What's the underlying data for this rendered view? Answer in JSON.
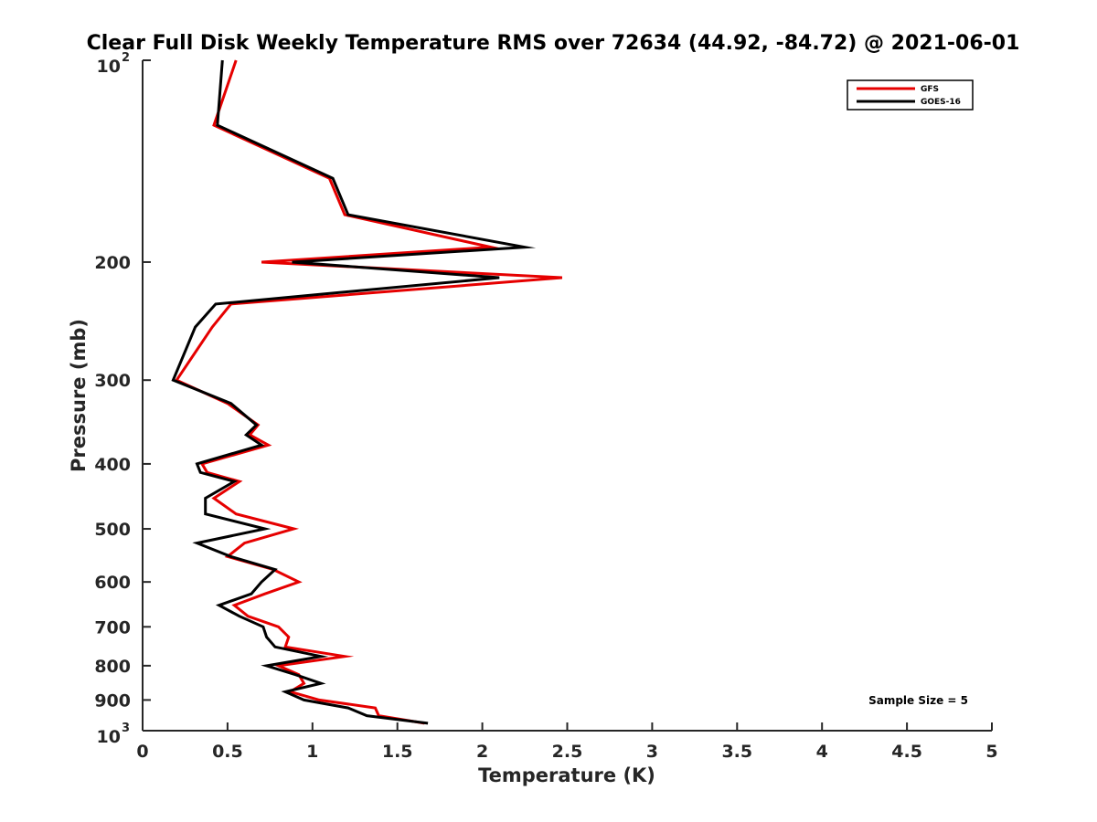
{
  "chart_data": {
    "type": "line",
    "title": "Clear Full Disk Weekly Temperature RMS over 72634 (44.92, -84.72) @ 2021-06-01",
    "xlabel": "Temperature (K)",
    "ylabel": "Pressure (mb)",
    "xlim": [
      0,
      5
    ],
    "ylim": [
      100,
      1000
    ],
    "yscale": "log",
    "y_reversed": true,
    "x_ticks": [
      {
        "value": 0,
        "label": "0"
      },
      {
        "value": 0.5,
        "label": "0.5"
      },
      {
        "value": 1,
        "label": "1"
      },
      {
        "value": 1.5,
        "label": "1.5"
      },
      {
        "value": 2,
        "label": "2"
      },
      {
        "value": 2.5,
        "label": "2.5"
      },
      {
        "value": 3,
        "label": "3"
      },
      {
        "value": 3.5,
        "label": "3.5"
      },
      {
        "value": 4,
        "label": "4"
      },
      {
        "value": 4.5,
        "label": "4.5"
      },
      {
        "value": 5,
        "label": "5"
      }
    ],
    "y_ticks": [
      {
        "value": 100,
        "base": "10",
        "exp": "2"
      },
      {
        "value": 200,
        "label": "200"
      },
      {
        "value": 300,
        "label": "300"
      },
      {
        "value": 400,
        "label": "400"
      },
      {
        "value": 500,
        "label": "500"
      },
      {
        "value": 600,
        "label": "600"
      },
      {
        "value": 700,
        "label": "700"
      },
      {
        "value": 800,
        "label": "800"
      },
      {
        "value": 900,
        "label": "900"
      },
      {
        "value": 1000,
        "base": "10",
        "exp": "3"
      }
    ],
    "legend": {
      "position": "top-right",
      "entries": [
        {
          "name": "GFS",
          "color": "#e60000"
        },
        {
          "name": "GOES-16",
          "color": "#000000"
        }
      ]
    },
    "annotation": "Sample Size = 5",
    "series": [
      {
        "name": "GFS",
        "color": "#e60000",
        "points": [
          [
            0.55,
            100
          ],
          [
            0.42,
            125
          ],
          [
            1.1,
            150
          ],
          [
            1.19,
            170
          ],
          [
            2.05,
            190
          ],
          [
            0.7,
            200
          ],
          [
            2.47,
            211
          ],
          [
            0.52,
            231
          ],
          [
            0.41,
            250
          ],
          [
            0.2,
            300
          ],
          [
            0.5,
            325
          ],
          [
            0.68,
            350
          ],
          [
            0.63,
            362
          ],
          [
            0.74,
            375
          ],
          [
            0.35,
            400
          ],
          [
            0.38,
            412
          ],
          [
            0.57,
            425
          ],
          [
            0.42,
            450
          ],
          [
            0.55,
            475
          ],
          [
            0.89,
            500
          ],
          [
            0.6,
            525
          ],
          [
            0.5,
            550
          ],
          [
            0.77,
            575
          ],
          [
            0.92,
            600
          ],
          [
            0.72,
            625
          ],
          [
            0.54,
            650
          ],
          [
            0.62,
            675
          ],
          [
            0.8,
            700
          ],
          [
            0.86,
            725
          ],
          [
            0.84,
            750
          ],
          [
            1.19,
            775
          ],
          [
            0.8,
            800
          ],
          [
            0.92,
            825
          ],
          [
            0.95,
            850
          ],
          [
            0.87,
            875
          ],
          [
            1.04,
            900
          ],
          [
            1.37,
            925
          ],
          [
            1.39,
            950
          ],
          [
            1.66,
            975
          ]
        ]
      },
      {
        "name": "GOES-16",
        "color": "#000000",
        "points": [
          [
            0.47,
            100
          ],
          [
            0.44,
            125
          ],
          [
            1.12,
            150
          ],
          [
            1.21,
            170
          ],
          [
            2.25,
            190
          ],
          [
            0.88,
            200
          ],
          [
            2.1,
            211
          ],
          [
            0.43,
            231
          ],
          [
            0.31,
            250
          ],
          [
            0.18,
            300
          ],
          [
            0.52,
            325
          ],
          [
            0.67,
            350
          ],
          [
            0.61,
            362
          ],
          [
            0.7,
            375
          ],
          [
            0.32,
            400
          ],
          [
            0.34,
            412
          ],
          [
            0.54,
            425
          ],
          [
            0.37,
            450
          ],
          [
            0.37,
            475
          ],
          [
            0.72,
            500
          ],
          [
            0.32,
            525
          ],
          [
            0.52,
            550
          ],
          [
            0.78,
            575
          ],
          [
            0.7,
            600
          ],
          [
            0.64,
            625
          ],
          [
            0.45,
            650
          ],
          [
            0.57,
            675
          ],
          [
            0.71,
            700
          ],
          [
            0.73,
            725
          ],
          [
            0.78,
            750
          ],
          [
            1.05,
            775
          ],
          [
            0.73,
            800
          ],
          [
            0.9,
            825
          ],
          [
            1.05,
            850
          ],
          [
            0.84,
            875
          ],
          [
            0.95,
            900
          ],
          [
            1.21,
            925
          ],
          [
            1.32,
            950
          ],
          [
            1.68,
            975
          ]
        ]
      }
    ]
  }
}
